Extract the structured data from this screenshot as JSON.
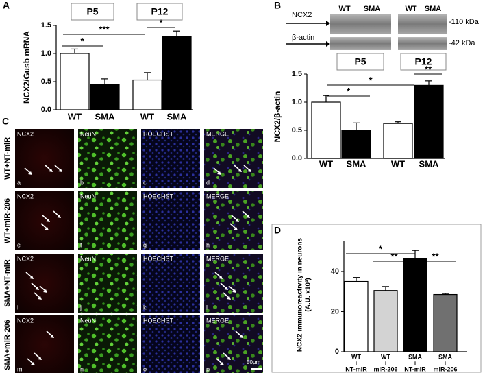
{
  "panel_letters": [
    "A",
    "B",
    "C",
    "D"
  ],
  "western_blot": {
    "lanes": [
      "WT",
      "SMA",
      "WT",
      "SMA"
    ],
    "rows": [
      "NCX2",
      "β-actin"
    ],
    "sizes": [
      "-110 kDa",
      "-42 kDa"
    ]
  },
  "micrographs": {
    "rows": [
      "WT+NT-miR",
      "WT+miR-206",
      "SMA+NT-miR",
      "SMA+miR-206"
    ],
    "channels": [
      "NCX2",
      "NeuN",
      "HOECHST",
      "MERGE"
    ],
    "letters": [
      "a",
      "b",
      "c",
      "d",
      "e",
      "f",
      "g",
      "h",
      "i",
      "j",
      "k",
      "l",
      "m",
      "n",
      "o",
      "p"
    ],
    "scale_bar": "50μm"
  },
  "chart_data": [
    {
      "type": "bar",
      "ylabel": "NCX2/Gusb mRNA",
      "groups": [
        "P5",
        "P12"
      ],
      "categories": [
        "WT",
        "SMA",
        "WT",
        "SMA"
      ],
      "values": [
        1.0,
        0.45,
        0.53,
        1.3
      ],
      "errors": [
        0.08,
        0.1,
        0.13,
        0.1
      ],
      "colors": [
        "#ffffff",
        "#000000",
        "#ffffff",
        "#000000"
      ],
      "ylim": [
        0,
        1.5
      ],
      "yticks": [
        {
          "value": 0,
          "label": "0.0"
        },
        {
          "value": 0.5,
          "label": "0.5"
        },
        {
          "value": 1,
          "label": "1.0"
        },
        {
          "value": 1.5,
          "label": "1.5"
        }
      ],
      "significance": [
        {
          "label": "*",
          "from": 0,
          "to": 1
        },
        {
          "label": "***",
          "from": 0,
          "to": 2
        },
        {
          "label": "*",
          "from": 2,
          "to": 3
        }
      ]
    },
    {
      "type": "bar",
      "ylabel": "NCX2/β-actin",
      "groups": [
        "P5",
        "P12"
      ],
      "categories": [
        "WT",
        "SMA",
        "WT",
        "SMA"
      ],
      "values": [
        1.0,
        0.5,
        0.62,
        1.3
      ],
      "errors": [
        0.12,
        0.13,
        0.03,
        0.08
      ],
      "colors": [
        "#ffffff",
        "#000000",
        "#ffffff",
        "#000000"
      ],
      "ylim": [
        0,
        1.5
      ],
      "yticks": [
        {
          "value": 0,
          "label": "0.0"
        },
        {
          "value": 0.5,
          "label": "0.5"
        },
        {
          "value": 1,
          "label": "1.0"
        },
        {
          "value": 1.5,
          "label": "1.5"
        }
      ],
      "significance": [
        {
          "label": "*",
          "from": 0,
          "to": 1
        },
        {
          "label": "*",
          "from": 0,
          "to": 2
        },
        {
          "label": "**",
          "from": 2,
          "to": 3
        }
      ]
    },
    {
      "type": "bar",
      "ylabel": [
        "NCX2 immunoreactivity in neurons",
        "(A.U. x10³)"
      ],
      "categories": [
        [
          "WT",
          "+",
          "NT-miR"
        ],
        [
          "WT",
          "+",
          "miR-206"
        ],
        [
          "SMA",
          "+",
          "NT-miR"
        ],
        [
          "SMA",
          "+",
          "miR-206"
        ]
      ],
      "values": [
        35,
        30.5,
        46.5,
        28.5
      ],
      "errors": [
        2,
        2,
        4,
        0.5
      ],
      "colors": [
        "#ffffff",
        "#d3d3d3",
        "#000000",
        "#707070"
      ],
      "ylim": [
        0,
        55
      ],
      "yticks": [
        0,
        20,
        40
      ],
      "significance": [
        {
          "label": "*",
          "from": 0,
          "to": 2
        },
        {
          "label": "**",
          "from": 1,
          "to": 2
        },
        {
          "label": "**",
          "from": 2,
          "to": 3
        }
      ]
    }
  ]
}
